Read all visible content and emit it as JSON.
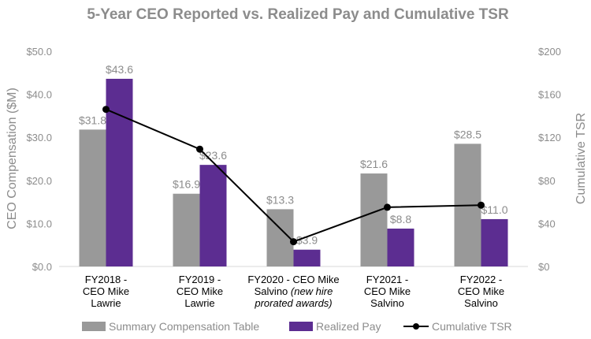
{
  "chart_data": {
    "type": "bar",
    "title": "5-Year CEO Reported vs. Realized Pay and Cumulative TSR",
    "categories": [
      [
        "FY2018 -",
        "CEO Mike",
        "Lawrie"
      ],
      [
        "FY2019 -",
        "CEO Mike",
        "Lawrie"
      ],
      [
        "FY2020 - CEO Mike",
        "Salvino|(new hire",
        "prorated awards)"
      ],
      [
        "FY2021 -",
        "CEO Mike",
        "Salvino"
      ],
      [
        "FY2022 -",
        "CEO Mike",
        "Salvino"
      ]
    ],
    "series": [
      {
        "name": "Summary Compensation Table",
        "type": "bar",
        "axis": "left",
        "color": "#999999",
        "values": [
          31.8,
          16.9,
          13.3,
          21.6,
          28.5
        ],
        "labels": [
          "$31.8",
          "$16.9",
          "$13.3",
          "$21.6",
          "$28.5"
        ]
      },
      {
        "name": "Realized Pay",
        "type": "bar",
        "axis": "left",
        "color": "#5c2d91",
        "values": [
          43.6,
          23.6,
          3.9,
          8.8,
          11.0
        ],
        "labels": [
          "$43.6",
          "$23.6",
          "$3.9",
          "$8.8",
          "$11.0"
        ]
      },
      {
        "name": "Cumulative TSR",
        "type": "line",
        "axis": "right",
        "color": "#000000",
        "values": [
          146,
          109,
          23,
          55,
          57
        ]
      }
    ],
    "left_axis": {
      "title": "CEO Compensation ($M)",
      "min": 0,
      "max": 50,
      "ticks": [
        0,
        10,
        20,
        30,
        40,
        50
      ],
      "tick_labels": [
        "$0.0",
        "$10.0",
        "$20.0",
        "$30.0",
        "$40.0",
        "$50.0"
      ]
    },
    "right_axis": {
      "title": "Cumulative TSR",
      "min": 0,
      "max": 200,
      "ticks": [
        0,
        40,
        80,
        120,
        160,
        200
      ],
      "tick_labels": [
        "$0",
        "$40",
        "$80",
        "$120",
        "$160",
        "$200"
      ]
    },
    "legend": {
      "position": "bottom"
    }
  }
}
